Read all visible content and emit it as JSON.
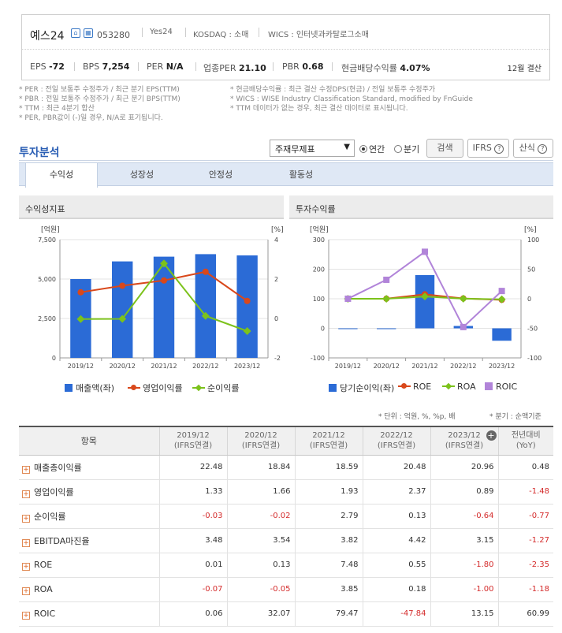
{
  "header": {
    "company": "예스24",
    "code": "053280",
    "meta": [
      "Yes24",
      "KOSDAQ : 소매",
      "WICS : 인터넷과카탈로그소매"
    ],
    "metrics": [
      {
        "label": "EPS",
        "value": "-72"
      },
      {
        "label": "BPS",
        "value": "7,254"
      },
      {
        "label": "PER",
        "value": "N/A"
      },
      {
        "label": "업종PER",
        "value": "21.10"
      },
      {
        "label": "PBR",
        "value": "0.68"
      },
      {
        "label": "현금배당수익률",
        "value": "4.07%"
      }
    ],
    "settlement": "12월 결산"
  },
  "notes": {
    "left": [
      "* PER : 전일 보통주 수정주가 / 최근 분기 EPS(TTM)",
      "* PBR : 전일 보통주 수정주가 / 최근 분기 BPS(TTM)",
      "* TTM : 최근 4분기 합산",
      "* PER, PBR값이 (-)일 경우, N/A로 표기됩니다."
    ],
    "right": [
      "* 현금배당수익률 : 최근 결산 수정DPS(현금) / 전일 보통주 수정주가",
      "* WICS : WISE Industry Classification Standard, modified by FnGuide",
      "* TTM 데이터가 없는 경우, 최근 결산 데이터로 표시됩니다."
    ]
  },
  "analysis": {
    "title": "투자분석",
    "select_value": "주재무제표",
    "radio_annual": "연간",
    "radio_quarter": "분기",
    "search_btn": "검색",
    "ifrs_btn": "IFRS",
    "formula_btn": "산식"
  },
  "tabs": [
    "수익성",
    "성장성",
    "안정성",
    "활동성"
  ],
  "left_chart_title": "수익성지표",
  "right_chart_title": "투자수익률",
  "chart_data": [
    {
      "type": "bar",
      "categories": [
        "2019/12",
        "2020/12",
        "2021/12",
        "2022/12",
        "2023/12"
      ],
      "left_unit": "[억원]",
      "right_unit": "[%]",
      "ylim_left": [
        0,
        7500
      ],
      "ylim_right": [
        -2,
        4
      ],
      "yticks_left": [
        "7,500",
        "5,000",
        "2,500",
        "0"
      ],
      "yticks_right": [
        "4",
        "2",
        "0",
        "-2"
      ],
      "series": [
        {
          "name": "매출액(좌)",
          "type": "bar",
          "axis": "left",
          "color": "#2b6bd6",
          "values": [
            5000,
            6120,
            6420,
            6580,
            6500
          ]
        },
        {
          "name": "영업이익률",
          "type": "line",
          "axis": "right",
          "color": "#d9481b",
          "values": [
            1.33,
            1.66,
            1.93,
            2.37,
            0.89
          ]
        },
        {
          "name": "순이익률",
          "type": "line",
          "axis": "right",
          "color": "#7cc21b",
          "values": [
            -0.03,
            -0.02,
            2.79,
            0.13,
            -0.64
          ]
        }
      ]
    },
    {
      "type": "bar",
      "categories": [
        "2019/12",
        "2020/12",
        "2021/12",
        "2022/12",
        "2023/12"
      ],
      "left_unit": "[억원]",
      "right_unit": "[%]",
      "ylim_left": [
        -100,
        300
      ],
      "ylim_right": [
        -100,
        100
      ],
      "yticks_left": [
        "300",
        "200",
        "100",
        "0",
        "-100"
      ],
      "yticks_right": [
        "100",
        "50",
        "0",
        "-50",
        "-100"
      ],
      "series": [
        {
          "name": "당기순이익(좌)",
          "type": "bar",
          "axis": "left",
          "color": "#2b6bd6",
          "values": [
            -1,
            -1,
            180,
            8,
            -42
          ]
        },
        {
          "name": "ROE",
          "type": "line",
          "axis": "right",
          "color": "#d9481b",
          "values": [
            0.01,
            0.13,
            7.48,
            0.55,
            -1.8
          ]
        },
        {
          "name": "ROA",
          "type": "line",
          "axis": "right",
          "color": "#7cc21b",
          "values": [
            -0.07,
            -0.05,
            3.85,
            0.18,
            -1.0
          ]
        },
        {
          "name": "ROIC",
          "type": "line",
          "axis": "right",
          "color": "#b184d9",
          "values": [
            0.06,
            32.07,
            79.47,
            -47.84,
            13.15
          ]
        }
      ]
    }
  ],
  "table": {
    "units": "* 단위 : 억원, %, %p, 배",
    "note": "* 분기 : 순액기준",
    "columns": [
      "항목",
      "2019/12\n(IFRS연결)",
      "2020/12\n(IFRS연결)",
      "2021/12\n(IFRS연결)",
      "2022/12\n(IFRS연결)",
      "2023/12\n(IFRS연결)",
      "전년대비\n(YoY)"
    ],
    "rows": [
      {
        "label": "매출총이익률",
        "values": [
          "22.48",
          "18.84",
          "18.59",
          "20.48",
          "20.96",
          "0.48"
        ]
      },
      {
        "label": "영업이익률",
        "values": [
          "1.33",
          "1.66",
          "1.93",
          "2.37",
          "0.89",
          "-1.48"
        ]
      },
      {
        "label": "순이익률",
        "values": [
          "-0.03",
          "-0.02",
          "2.79",
          "0.13",
          "-0.64",
          "-0.77"
        ]
      },
      {
        "label": "EBITDA마진율",
        "values": [
          "3.48",
          "3.54",
          "3.82",
          "4.42",
          "3.15",
          "-1.27"
        ]
      },
      {
        "label": "ROE",
        "values": [
          "0.01",
          "0.13",
          "7.48",
          "0.55",
          "-1.80",
          "-2.35"
        ]
      },
      {
        "label": "ROA",
        "values": [
          "-0.07",
          "-0.05",
          "3.85",
          "0.18",
          "-1.00",
          "-1.18"
        ]
      },
      {
        "label": "ROIC",
        "values": [
          "0.06",
          "32.07",
          "79.47",
          "-47.84",
          "13.15",
          "60.99"
        ]
      }
    ]
  }
}
